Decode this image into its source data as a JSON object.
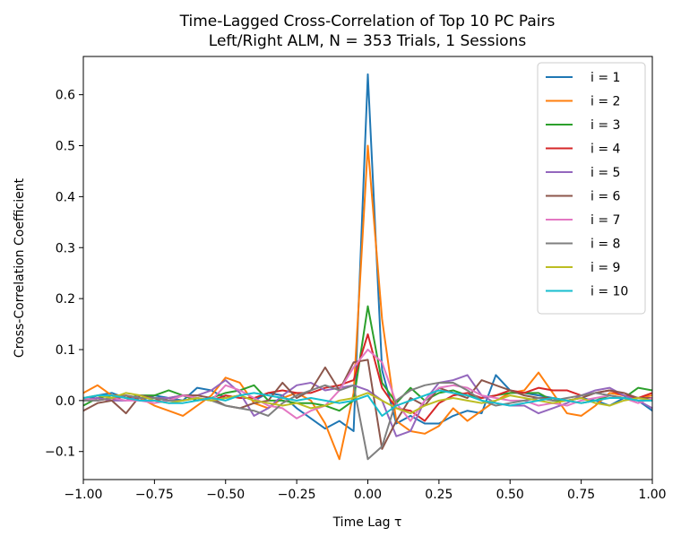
{
  "chart_data": {
    "type": "line",
    "title": "Time-Lagged Cross-Correlation of Top 10 PC Pairs",
    "subtitle": "Left/Right ALM, N = 353 Trials, 1 Sessions",
    "xlabel": "Time Lag τ",
    "ylabel": "Cross-Correlation Coefficient",
    "xlim": [
      -1.0,
      1.0
    ],
    "ylim": [
      -0.155,
      0.675
    ],
    "grid": false,
    "legend_position": "top-right",
    "xticks": [
      -1.0,
      -0.75,
      -0.5,
      -0.25,
      0.0,
      0.25,
      0.5,
      0.75,
      1.0
    ],
    "xtick_labels": [
      "−1.00",
      "−0.75",
      "−0.50",
      "−0.25",
      "0.00",
      "0.25",
      "0.50",
      "0.75",
      "1.00"
    ],
    "yticks": [
      -0.1,
      0.0,
      0.1,
      0.2,
      0.3,
      0.4,
      0.5,
      0.6
    ],
    "ytick_labels": [
      "−0.1",
      "0.0",
      "0.1",
      "0.2",
      "0.3",
      "0.4",
      "0.5",
      "0.6"
    ],
    "x": [
      -1.0,
      -0.95,
      -0.9,
      -0.85,
      -0.8,
      -0.75,
      -0.7,
      -0.65,
      -0.6,
      -0.55,
      -0.5,
      -0.45,
      -0.4,
      -0.35,
      -0.3,
      -0.25,
      -0.2,
      -0.15,
      -0.1,
      -0.05,
      0.0,
      0.05,
      0.1,
      0.15,
      0.2,
      0.25,
      0.3,
      0.35,
      0.4,
      0.45,
      0.5,
      0.55,
      0.6,
      0.65,
      0.7,
      0.75,
      0.8,
      0.85,
      0.9,
      0.95,
      1.0
    ],
    "series": [
      {
        "name": "i = 1",
        "color": "#1f77b4",
        "values": [
          0.0,
          0.01,
          0.015,
          0.005,
          0.0,
          0.01,
          0.005,
          0.0,
          0.025,
          0.02,
          0.005,
          0.01,
          0.0,
          0.015,
          0.01,
          -0.015,
          -0.035,
          -0.055,
          -0.04,
          -0.06,
          0.64,
          0.06,
          -0.045,
          -0.03,
          -0.045,
          -0.045,
          -0.03,
          -0.02,
          -0.025,
          0.05,
          0.02,
          0.015,
          0.01,
          0.005,
          0.0,
          0.005,
          0.0,
          -0.01,
          0.005,
          0.0,
          -0.02
        ]
      },
      {
        "name": "i = 2",
        "color": "#ff7f0e",
        "values": [
          0.015,
          0.03,
          0.01,
          0.01,
          0.005,
          -0.01,
          -0.02,
          -0.03,
          -0.01,
          0.01,
          0.045,
          0.035,
          -0.005,
          -0.015,
          0.005,
          0.015,
          0.0,
          -0.045,
          -0.115,
          0.015,
          0.5,
          0.16,
          -0.04,
          -0.06,
          -0.065,
          -0.05,
          -0.015,
          -0.04,
          -0.02,
          0.0,
          0.015,
          0.02,
          0.055,
          0.015,
          -0.025,
          -0.03,
          -0.01,
          0.015,
          0.01,
          0.005,
          0.01
        ]
      },
      {
        "name": "i = 3",
        "color": "#2ca02c",
        "values": [
          -0.01,
          0.005,
          0.01,
          0.005,
          0.01,
          0.01,
          0.02,
          0.01,
          0.0,
          0.005,
          0.015,
          0.02,
          0.03,
          0.0,
          0.0,
          -0.005,
          -0.005,
          -0.01,
          -0.02,
          0.0,
          0.185,
          0.035,
          -0.005,
          0.025,
          0.0,
          0.015,
          0.02,
          0.01,
          0.005,
          0.01,
          0.015,
          0.015,
          0.015,
          0.0,
          0.0,
          -0.005,
          0.0,
          0.01,
          0.005,
          0.025,
          0.02
        ]
      },
      {
        "name": "i = 4",
        "color": "#d62728",
        "values": [
          0.0,
          0.005,
          0.0,
          0.01,
          0.0,
          0.0,
          0.005,
          0.01,
          0.005,
          0.0,
          0.01,
          0.005,
          0.005,
          0.015,
          0.02,
          0.015,
          0.015,
          0.025,
          0.03,
          0.04,
          0.13,
          0.025,
          -0.015,
          -0.02,
          -0.04,
          -0.005,
          0.01,
          0.015,
          0.005,
          0.01,
          0.02,
          0.015,
          0.025,
          0.02,
          0.02,
          0.01,
          0.015,
          0.02,
          0.01,
          0.005,
          0.015
        ]
      },
      {
        "name": "i = 5",
        "color": "#9467bd",
        "values": [
          0.0,
          0.005,
          0.0,
          0.0,
          0.01,
          0.005,
          0.005,
          0.01,
          0.01,
          0.02,
          0.04,
          0.015,
          -0.03,
          -0.015,
          0.01,
          0.03,
          0.035,
          0.02,
          0.025,
          0.03,
          0.02,
          0.0,
          -0.07,
          -0.06,
          0.0,
          0.035,
          0.04,
          0.05,
          0.01,
          -0.005,
          -0.01,
          -0.01,
          -0.025,
          -0.015,
          -0.005,
          0.01,
          0.02,
          0.025,
          0.01,
          0.0,
          -0.015
        ]
      },
      {
        "name": "i = 6",
        "color": "#8c564b",
        "values": [
          -0.02,
          -0.005,
          0.0,
          -0.025,
          0.01,
          0.005,
          0.0,
          0.01,
          0.01,
          0.005,
          -0.01,
          -0.015,
          -0.005,
          0.0,
          0.035,
          0.005,
          0.02,
          0.065,
          0.02,
          0.075,
          0.08,
          -0.095,
          -0.04,
          0.005,
          -0.01,
          0.025,
          0.015,
          0.005,
          0.04,
          0.03,
          0.02,
          0.01,
          0.005,
          0.005,
          0.0,
          0.005,
          0.015,
          0.02,
          0.015,
          0.005,
          0.005
        ]
      },
      {
        "name": "i = 7",
        "color": "#e377c2",
        "values": [
          0.005,
          0.0,
          0.005,
          0.0,
          0.0,
          -0.005,
          0.0,
          0.01,
          0.005,
          0.0,
          0.03,
          0.02,
          0.005,
          -0.01,
          -0.015,
          -0.035,
          -0.02,
          -0.01,
          0.02,
          0.065,
          0.1,
          0.075,
          -0.005,
          -0.04,
          0.0,
          0.025,
          0.03,
          0.025,
          0.01,
          0.005,
          0.0,
          0.0,
          -0.01,
          -0.005,
          -0.01,
          0.0,
          0.005,
          0.01,
          0.005,
          -0.005,
          0.005
        ]
      },
      {
        "name": "i = 8",
        "color": "#7f7f7f",
        "values": [
          0.0,
          0.0,
          0.005,
          0.01,
          0.005,
          0.005,
          0.0,
          0.0,
          0.005,
          0.0,
          -0.01,
          -0.015,
          -0.02,
          -0.03,
          -0.005,
          0.01,
          0.02,
          0.03,
          0.02,
          0.03,
          -0.115,
          -0.09,
          0.0,
          0.02,
          0.03,
          0.035,
          0.035,
          0.02,
          0.0,
          -0.01,
          -0.005,
          0.0,
          0.005,
          0.0,
          0.005,
          0.01,
          0.015,
          0.01,
          0.005,
          0.0,
          0.0
        ]
      },
      {
        "name": "i = 9",
        "color": "#bcbd22",
        "values": [
          0.005,
          0.01,
          0.005,
          0.015,
          0.01,
          0.0,
          -0.005,
          0.0,
          0.005,
          0.0,
          0.005,
          0.01,
          0.0,
          -0.005,
          -0.01,
          -0.005,
          -0.015,
          -0.01,
          0.0,
          0.005,
          0.015,
          0.0,
          -0.015,
          -0.025,
          -0.01,
          0.0,
          0.005,
          0.0,
          -0.005,
          0.0,
          0.01,
          0.005,
          0.0,
          -0.005,
          0.0,
          0.005,
          -0.005,
          -0.01,
          0.0,
          0.005,
          0.0
        ]
      },
      {
        "name": "i = 10",
        "color": "#17becf",
        "values": [
          0.005,
          0.01,
          0.01,
          0.005,
          0.0,
          0.0,
          -0.005,
          -0.005,
          0.0,
          0.005,
          0.0,
          0.01,
          0.015,
          0.01,
          0.005,
          0.0,
          0.005,
          0.0,
          -0.005,
          0.0,
          0.01,
          -0.03,
          -0.01,
          0.0,
          0.01,
          0.02,
          0.015,
          0.01,
          0.0,
          -0.005,
          -0.01,
          -0.005,
          0.0,
          0.005,
          0.0,
          -0.005,
          0.0,
          0.005,
          0.005,
          0.0,
          0.0
        ]
      }
    ]
  }
}
